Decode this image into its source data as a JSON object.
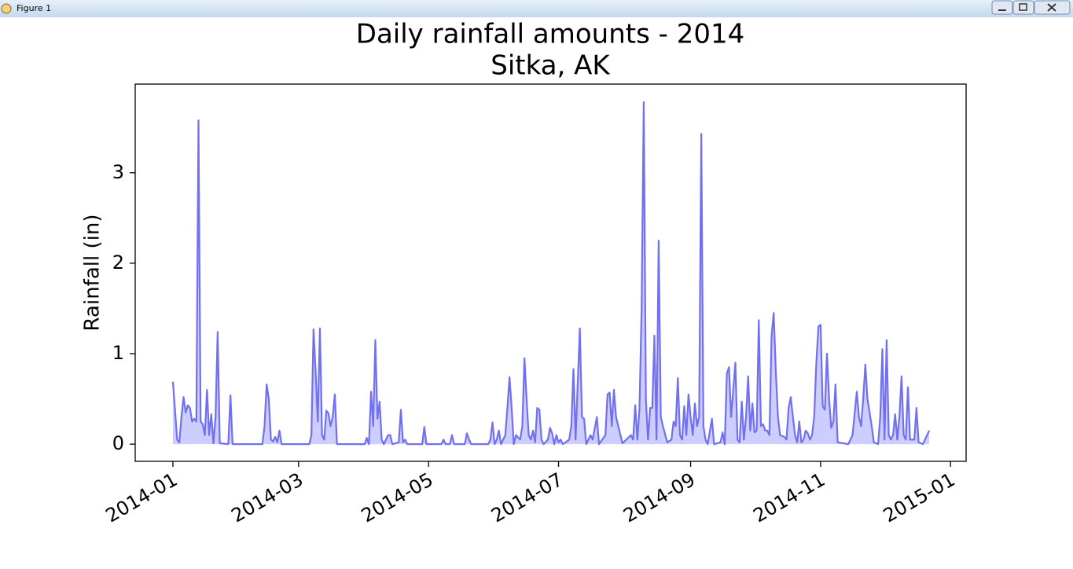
{
  "window": {
    "title": "Figure 1"
  },
  "chart_data": {
    "type": "area",
    "title": "Daily rainfall amounts - 2014",
    "subtitle": "Sitka, AK",
    "y_label": "Rainfall (in)",
    "color": "#7070f0",
    "fill_color": "#c8c8ff",
    "xlim": [
      -17.7,
      372.3
    ],
    "xticks": [
      {
        "value": 0,
        "label": "2014-01"
      },
      {
        "value": 59,
        "label": "2014-03"
      },
      {
        "value": 120,
        "label": "2014-05"
      },
      {
        "value": 181,
        "label": "2014-07"
      },
      {
        "value": 243,
        "label": "2014-09"
      },
      {
        "value": 304,
        "label": "2014-11"
      },
      {
        "value": 365,
        "label": "2015-01"
      }
    ],
    "ylim": [
      -0.19,
      3.98
    ],
    "yticks": [
      0,
      1,
      2,
      3
    ],
    "x": [
      0,
      2,
      3,
      4,
      5,
      6,
      7,
      8,
      9,
      10,
      11,
      12,
      13,
      14,
      15,
      16,
      17,
      18,
      19,
      20,
      21,
      22,
      26,
      27,
      28,
      42,
      43,
      44,
      45,
      46,
      47,
      48,
      49,
      50,
      51,
      64,
      65,
      66,
      67,
      68,
      69,
      70,
      71,
      72,
      73,
      74,
      75,
      76,
      77,
      90,
      91,
      92,
      93,
      94,
      95,
      96,
      97,
      98,
      99,
      101,
      102,
      103,
      106,
      107,
      108,
      109,
      110,
      117,
      118,
      119,
      126,
      127,
      128,
      130,
      131,
      132,
      137,
      138,
      139,
      140,
      148,
      149,
      150,
      151,
      152,
      153,
      154,
      156,
      157,
      158,
      159,
      160,
      161,
      163,
      164,
      165,
      166,
      167,
      168,
      169,
      170,
      171,
      172,
      173,
      174,
      176,
      177,
      178,
      179,
      180,
      181,
      182,
      183,
      186,
      187,
      188,
      189,
      191,
      192,
      193,
      194,
      196,
      197,
      199,
      200,
      203,
      204,
      205,
      206,
      207,
      208,
      211,
      215,
      216,
      217,
      218,
      219,
      220,
      221,
      222,
      223,
      224,
      225,
      226,
      227,
      228,
      229,
      230,
      232,
      234,
      235,
      236,
      237,
      238,
      239,
      240,
      241,
      242,
      243,
      244,
      245,
      246,
      247,
      248,
      249,
      250,
      251,
      253,
      254,
      257,
      258,
      259,
      260,
      261,
      262,
      263,
      264,
      265,
      266,
      267,
      268,
      269,
      270,
      271,
      272,
      273,
      274,
      275,
      276,
      277,
      278,
      279,
      280,
      281,
      282,
      283,
      284,
      285,
      287,
      288,
      289,
      290,
      291,
      292,
      293,
      294,
      295,
      296,
      297,
      298,
      299,
      300,
      301,
      302,
      303,
      304,
      305,
      306,
      307,
      308,
      309,
      310,
      311,
      312,
      317,
      319,
      321,
      322,
      323,
      324,
      325,
      326,
      327,
      328,
      329,
      331,
      332,
      333,
      334,
      335,
      336,
      337,
      338,
      339,
      340,
      341,
      342,
      343,
      344,
      345,
      346,
      347,
      348,
      349,
      350,
      352,
      355
    ],
    "values": [
      0.69,
      0.05,
      0.02,
      0.3,
      0.52,
      0.35,
      0.43,
      0.4,
      0.25,
      0.28,
      0.25,
      3.58,
      0.25,
      0.22,
      0.1,
      0.6,
      0.1,
      0.33,
      0.01,
      0.3,
      1.24,
      0.01,
      0,
      0.54,
      0,
      0,
      0.2,
      0.66,
      0.5,
      0.05,
      0.03,
      0.08,
      0.02,
      0.15,
      0,
      0,
      0.1,
      1.27,
      0.8,
      0.25,
      1.28,
      0.1,
      0.05,
      0.37,
      0.34,
      0.2,
      0.3,
      0.55,
      0,
      0,
      0.07,
      0,
      0.58,
      0.2,
      1.15,
      0.28,
      0.47,
      0.05,
      0,
      0.1,
      0.1,
      0,
      0.02,
      0.38,
      0.02,
      0.05,
      0,
      0,
      0.19,
      0,
      0,
      0.05,
      0,
      0,
      0.1,
      0,
      0,
      0.12,
      0.05,
      0,
      0,
      0.05,
      0.24,
      0,
      0.05,
      0.15,
      0,
      0.1,
      0.4,
      0.74,
      0.4,
      0,
      0.1,
      0.05,
      0.2,
      0.95,
      0.5,
      0.1,
      0.05,
      0.15,
      0.02,
      0.4,
      0.38,
      0.05,
      0,
      0.05,
      0.18,
      0.12,
      0,
      0.1,
      0.02,
      0.05,
      0,
      0.05,
      0.2,
      0.83,
      0.05,
      1.28,
      0.3,
      0.28,
      0,
      0.1,
      0.05,
      0.3,
      0,
      0.1,
      0.55,
      0.57,
      0.2,
      0.6,
      0.3,
      0.01,
      0.1,
      0.05,
      0.43,
      0.05,
      0.4,
      1.5,
      3.78,
      0.5,
      0.05,
      0.4,
      0.4,
      1.2,
      0.05,
      2.25,
      0.3,
      0.2,
      0.02,
      0.05,
      0.25,
      0.2,
      0.73,
      0.1,
      0.05,
      0.42,
      0.1,
      0.55,
      0.3,
      0.1,
      0.45,
      0.2,
      0.3,
      3.43,
      0.2,
      0.05,
      0,
      0.28,
      0,
      0.02,
      0.13,
      0,
      0.78,
      0.85,
      0.3,
      0.6,
      0.9,
      0.05,
      0.02,
      0.47,
      0.05,
      0.3,
      0.75,
      0.15,
      0.45,
      0.13,
      0.15,
      1.37,
      0.2,
      0.22,
      0.15,
      0.15,
      0.1,
      1.2,
      1.45,
      0.8,
      0.3,
      0.1,
      0.08,
      0.05,
      0.4,
      0.52,
      0.3,
      0.1,
      0.02,
      0.25,
      0.02,
      0.05,
      0.15,
      0.12,
      0.05,
      0.1,
      0.3,
      0.9,
      1.3,
      1.32,
      0.42,
      0.38,
      1.0,
      0.5,
      0.18,
      0.25,
      0.66,
      0.02,
      0,
      0.1,
      0.58,
      0.3,
      0.2,
      0.5,
      0.88,
      0.5,
      0.35,
      0.2,
      0.02,
      0,
      0.3,
      1.05,
      0.05,
      1.15,
      0.1,
      0.05,
      0.1,
      0.33,
      0.05,
      0.3,
      0.75,
      0.1,
      0.05,
      0.63,
      0.05,
      0.05,
      0.05,
      0.4,
      0.02,
      0,
      0.15
    ]
  }
}
